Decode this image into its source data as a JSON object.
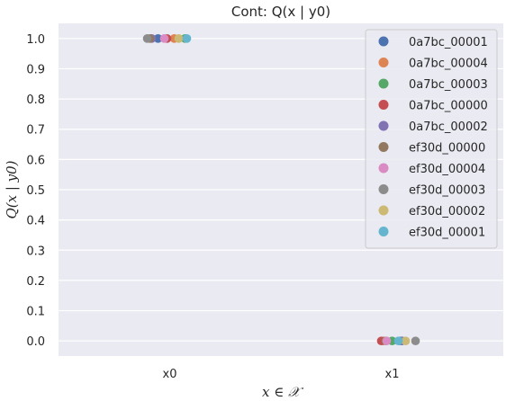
{
  "chart_data": {
    "type": "scatter",
    "title": "Cont: Q(x | y0)",
    "xlabel": "x ∈ 𝒳",
    "ylabel": "Q(x | y0)",
    "categories": [
      "x0",
      "x1"
    ],
    "ylim": [
      -0.05,
      1.05
    ],
    "yticks": [
      "0.0",
      "0.1",
      "0.2",
      "0.3",
      "0.4",
      "0.5",
      "0.6",
      "0.7",
      "0.8",
      "0.9",
      "1.0"
    ],
    "grid": true,
    "legend_position": "top-right",
    "jitter_x": true,
    "series": [
      {
        "name": "0a7bc_00001",
        "color": "#4c72b0",
        "values": [
          1.0,
          0.0
        ]
      },
      {
        "name": "0a7bc_00004",
        "color": "#dd8452",
        "values": [
          1.0,
          0.0
        ]
      },
      {
        "name": "0a7bc_00003",
        "color": "#55a868",
        "values": [
          1.0,
          0.0
        ]
      },
      {
        "name": "0a7bc_00000",
        "color": "#c44e52",
        "values": [
          1.0,
          0.0
        ]
      },
      {
        "name": "0a7bc_00002",
        "color": "#8172b3",
        "values": [
          1.0,
          0.0
        ]
      },
      {
        "name": "ef30d_00000",
        "color": "#937860",
        "values": [
          1.0,
          0.0
        ]
      },
      {
        "name": "ef30d_00004",
        "color": "#da8bc3",
        "values": [
          1.0,
          0.0
        ]
      },
      {
        "name": "ef30d_00003",
        "color": "#8c8c8c",
        "values": [
          1.0,
          0.0
        ]
      },
      {
        "name": "ef30d_00002",
        "color": "#ccb974",
        "values": [
          1.0,
          0.0
        ]
      },
      {
        "name": "ef30d_00001",
        "color": "#64b5cd",
        "values": [
          1.0,
          0.0
        ]
      }
    ]
  },
  "colors": {
    "plot_background": "#eaeaf2",
    "grid": "#ffffff",
    "legend_background": "#eaeaf2"
  }
}
